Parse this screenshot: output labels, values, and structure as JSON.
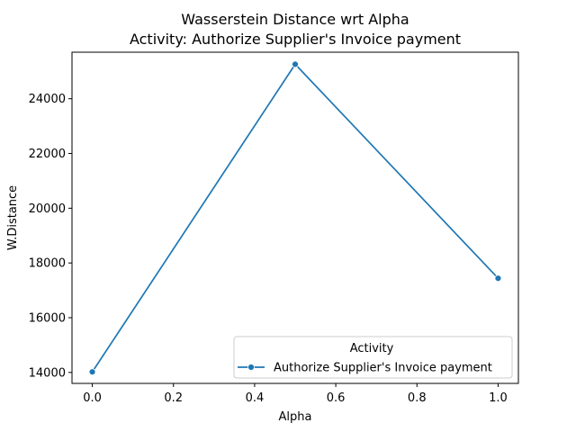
{
  "chart_data": {
    "type": "line",
    "title": "Wasserstein Distance wrt Alpha",
    "subtitle": "Activity: Authorize Supplier's Invoice payment",
    "xlabel": "Alpha",
    "ylabel": "W.Distance",
    "xlim": [
      -0.05,
      1.05
    ],
    "ylim": [
      13600,
      25700
    ],
    "xticks": [
      0.0,
      0.2,
      0.4,
      0.6,
      0.8,
      1.0
    ],
    "xtick_labels": [
      "0.0",
      "0.2",
      "0.4",
      "0.6",
      "0.8",
      "1.0"
    ],
    "yticks": [
      14000,
      16000,
      18000,
      20000,
      22000,
      24000
    ],
    "ytick_labels": [
      "14000",
      "16000",
      "18000",
      "20000",
      "22000",
      "24000"
    ],
    "grid": false,
    "legend": {
      "title": "Activity",
      "placement": "lower-right"
    },
    "series": [
      {
        "name": "Authorize Supplier's Invoice payment",
        "color": "#1f77b4",
        "marker": "circle",
        "x": [
          0.0,
          0.5,
          1.0
        ],
        "y": [
          14020,
          25260,
          17440
        ]
      }
    ]
  }
}
